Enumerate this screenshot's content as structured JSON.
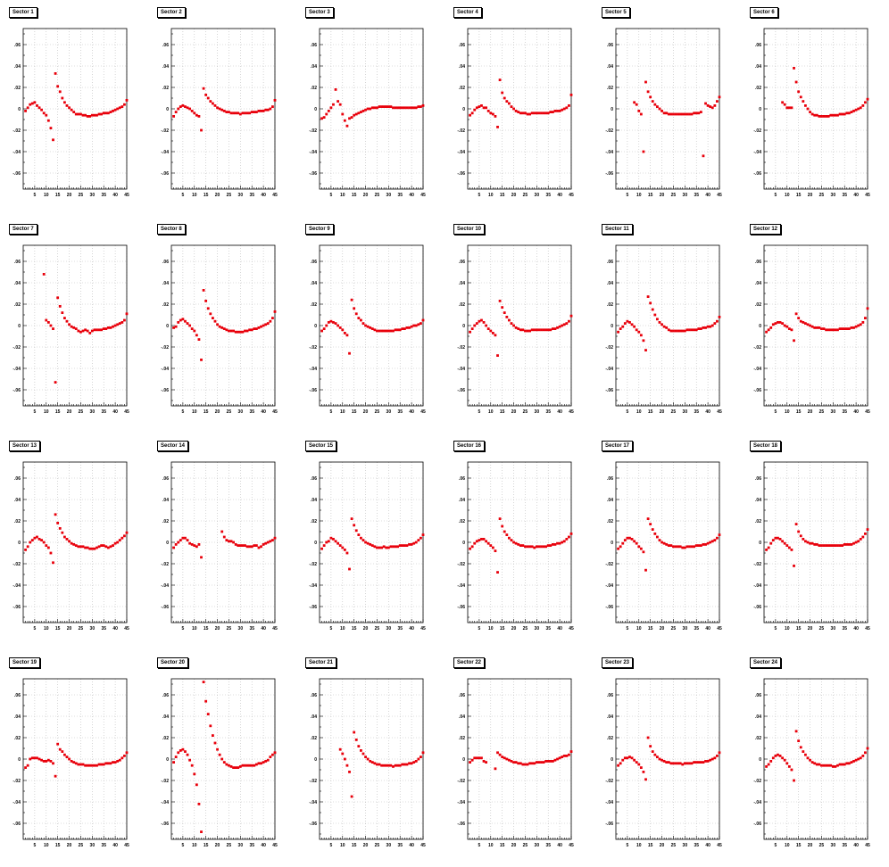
{
  "figure": {
    "background": "#ffffff"
  },
  "chart_data": [
    {
      "type": "scatter",
      "title": "Sector 1",
      "xlim": [
        0,
        45
      ],
      "ylim": [
        -0.075,
        0.075
      ],
      "xticks": [
        5,
        10,
        15,
        20,
        25,
        30,
        35,
        40,
        45
      ],
      "yticks": [
        -0.06,
        -0.04,
        -0.02,
        0,
        0.02,
        0.04,
        0.06
      ],
      "grid": true,
      "marker_color": "#e8000b",
      "x": [
        1,
        2,
        3,
        4,
        5,
        6,
        7,
        8,
        9,
        10,
        11,
        12,
        13,
        14,
        15,
        16,
        17,
        18,
        19,
        20,
        21,
        22,
        23,
        24,
        25,
        26,
        27,
        28,
        29,
        30,
        31,
        32,
        33,
        34,
        35,
        36,
        37,
        38,
        39,
        40,
        41,
        42,
        43,
        44,
        45
      ],
      "y": [
        -0.002,
        0.001,
        0.004,
        0.005,
        0.006,
        0.003,
        0.001,
        -0.001,
        -0.004,
        -0.006,
        -0.011,
        -0.018,
        -0.029,
        0.033,
        0.021,
        0.016,
        0.01,
        0.006,
        0.003,
        0.001,
        -0.001,
        -0.003,
        -0.005,
        -0.005,
        -0.005,
        -0.006,
        -0.006,
        -0.007,
        -0.007,
        -0.006,
        -0.006,
        -0.006,
        -0.005,
        -0.005,
        -0.004,
        -0.004,
        -0.004,
        -0.003,
        -0.002,
        -0.001,
        0.0,
        0.001,
        0.002,
        0.004,
        0.008
      ]
    },
    {
      "type": "scatter",
      "title": "Sector 2",
      "xlim": [
        0,
        45
      ],
      "ylim": [
        -0.075,
        0.075
      ],
      "xticks": [
        5,
        10,
        15,
        20,
        25,
        30,
        35,
        40,
        45
      ],
      "yticks": [
        -0.06,
        -0.04,
        -0.02,
        0,
        0.02,
        0.04,
        0.06
      ],
      "grid": true,
      "marker_color": "#e8000b",
      "x": [
        1,
        2,
        3,
        4,
        5,
        6,
        7,
        8,
        9,
        10,
        11,
        12,
        13,
        14,
        15,
        16,
        17,
        18,
        19,
        20,
        21,
        22,
        23,
        24,
        25,
        26,
        27,
        28,
        29,
        30,
        31,
        32,
        33,
        34,
        35,
        36,
        37,
        38,
        39,
        40,
        41,
        42,
        43,
        44,
        45
      ],
      "y": [
        -0.007,
        -0.003,
        0.0,
        0.002,
        0.003,
        0.002,
        0.001,
        0.0,
        -0.002,
        -0.004,
        -0.006,
        -0.007,
        -0.02,
        0.019,
        0.013,
        0.01,
        0.007,
        0.005,
        0.003,
        0.001,
        0.0,
        -0.001,
        -0.002,
        -0.003,
        -0.003,
        -0.004,
        -0.004,
        -0.004,
        -0.004,
        -0.005,
        -0.004,
        -0.004,
        -0.004,
        -0.004,
        -0.003,
        -0.003,
        -0.003,
        -0.002,
        -0.002,
        -0.002,
        -0.001,
        -0.001,
        0.0,
        0.002,
        0.008
      ]
    },
    {
      "type": "scatter",
      "title": "Sector 3",
      "xlim": [
        0,
        45
      ],
      "ylim": [
        -0.075,
        0.075
      ],
      "xticks": [
        5,
        10,
        15,
        20,
        25,
        30,
        35,
        40,
        45
      ],
      "yticks": [
        -0.06,
        -0.04,
        -0.02,
        0,
        0.02,
        0.04,
        0.06
      ],
      "grid": true,
      "marker_color": "#e8000b",
      "x": [
        1,
        2,
        3,
        4,
        5,
        6,
        7,
        8,
        9,
        10,
        11,
        12,
        13,
        14,
        15,
        16,
        17,
        18,
        19,
        20,
        21,
        22,
        23,
        24,
        25,
        26,
        27,
        28,
        29,
        30,
        31,
        32,
        33,
        34,
        35,
        36,
        37,
        38,
        39,
        40,
        41,
        42,
        43,
        44,
        45
      ],
      "y": [
        -0.009,
        -0.008,
        -0.005,
        -0.002,
        0.001,
        0.004,
        0.018,
        0.007,
        0.004,
        -0.005,
        -0.011,
        -0.016,
        -0.009,
        -0.008,
        -0.006,
        -0.005,
        -0.004,
        -0.003,
        -0.002,
        -0.001,
        0.0,
        0.0,
        0.001,
        0.001,
        0.001,
        0.002,
        0.002,
        0.002,
        0.002,
        0.002,
        0.002,
        0.001,
        0.001,
        0.001,
        0.001,
        0.001,
        0.001,
        0.001,
        0.001,
        0.001,
        0.001,
        0.001,
        0.002,
        0.002,
        0.003
      ]
    },
    {
      "type": "scatter",
      "title": "Sector 4",
      "xlim": [
        0,
        45
      ],
      "ylim": [
        -0.075,
        0.075
      ],
      "xticks": [
        5,
        10,
        15,
        20,
        25,
        30,
        35,
        40,
        45
      ],
      "yticks": [
        -0.06,
        -0.04,
        -0.02,
        0,
        0.02,
        0.04,
        0.06
      ],
      "grid": true,
      "marker_color": "#e8000b",
      "x": [
        1,
        2,
        3,
        4,
        5,
        6,
        7,
        8,
        9,
        10,
        11,
        12,
        13,
        14,
        15,
        16,
        17,
        18,
        19,
        20,
        21,
        22,
        23,
        24,
        25,
        26,
        27,
        28,
        29,
        30,
        31,
        32,
        33,
        34,
        35,
        36,
        37,
        38,
        39,
        40,
        41,
        42,
        43,
        44,
        45
      ],
      "y": [
        -0.006,
        -0.004,
        -0.001,
        0.001,
        0.002,
        0.003,
        0.001,
        0.001,
        -0.002,
        -0.004,
        -0.005,
        -0.007,
        -0.017,
        0.027,
        0.015,
        0.01,
        0.007,
        0.005,
        0.002,
        0.0,
        -0.002,
        -0.003,
        -0.004,
        -0.004,
        -0.004,
        -0.005,
        -0.005,
        -0.004,
        -0.004,
        -0.004,
        -0.004,
        -0.004,
        -0.004,
        -0.004,
        -0.004,
        -0.003,
        -0.003,
        -0.002,
        -0.002,
        -0.002,
        -0.001,
        0.0,
        0.001,
        0.003,
        0.013
      ]
    },
    {
      "type": "scatter",
      "title": "Sector 5",
      "xlim": [
        0,
        45
      ],
      "ylim": [
        -0.075,
        0.075
      ],
      "xticks": [
        5,
        10,
        15,
        20,
        25,
        30,
        35,
        40,
        45
      ],
      "yticks": [
        -0.06,
        -0.04,
        -0.02,
        0,
        0.02,
        0.04,
        0.06
      ],
      "grid": true,
      "marker_color": "#e8000b",
      "x": [
        8,
        9,
        10,
        11,
        12,
        13,
        14,
        15,
        16,
        17,
        18,
        19,
        20,
        21,
        22,
        23,
        24,
        25,
        26,
        27,
        28,
        29,
        30,
        31,
        32,
        33,
        34,
        35,
        36,
        37,
        38,
        39,
        40,
        41,
        42,
        43,
        44,
        45
      ],
      "y": [
        0.006,
        0.004,
        -0.002,
        -0.005,
        -0.04,
        0.025,
        0.016,
        0.011,
        0.007,
        0.004,
        0.002,
        0.0,
        -0.002,
        -0.004,
        -0.004,
        -0.005,
        -0.005,
        -0.005,
        -0.005,
        -0.005,
        -0.005,
        -0.005,
        -0.005,
        -0.005,
        -0.005,
        -0.005,
        -0.004,
        -0.004,
        -0.004,
        -0.003,
        -0.044,
        0.005,
        0.003,
        0.002,
        0.001,
        0.003,
        0.007,
        0.011
      ]
    },
    {
      "type": "scatter",
      "title": "Sector 6",
      "xlim": [
        0,
        45
      ],
      "ylim": [
        -0.075,
        0.075
      ],
      "xticks": [
        5,
        10,
        15,
        20,
        25,
        30,
        35,
        40,
        45
      ],
      "yticks": [
        -0.06,
        -0.04,
        -0.02,
        0,
        0.02,
        0.04,
        0.06
      ],
      "grid": true,
      "marker_color": "#e8000b",
      "x": [
        8,
        9,
        10,
        11,
        12,
        13,
        14,
        15,
        16,
        17,
        18,
        19,
        20,
        21,
        22,
        23,
        24,
        25,
        26,
        27,
        28,
        29,
        30,
        31,
        32,
        33,
        34,
        35,
        36,
        37,
        38,
        39,
        40,
        41,
        42,
        43,
        44,
        45
      ],
      "y": [
        0.006,
        0.004,
        0.001,
        0.001,
        0.001,
        0.038,
        0.025,
        0.016,
        0.011,
        0.007,
        0.003,
        0.0,
        -0.003,
        -0.005,
        -0.006,
        -0.006,
        -0.007,
        -0.007,
        -0.007,
        -0.007,
        -0.007,
        -0.006,
        -0.006,
        -0.006,
        -0.006,
        -0.005,
        -0.005,
        -0.005,
        -0.004,
        -0.004,
        -0.003,
        -0.002,
        -0.001,
        0.0,
        0.001,
        0.003,
        0.006,
        0.009
      ]
    }
  ],
  "chart_data_more": []
}
